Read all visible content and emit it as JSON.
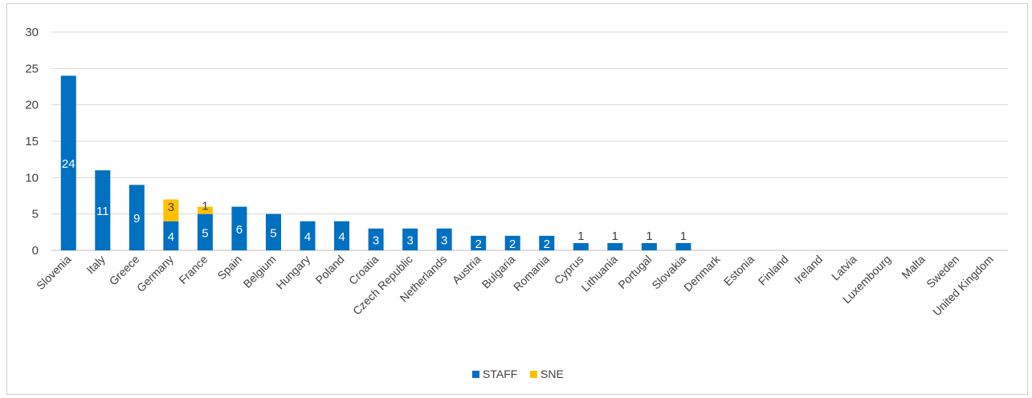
{
  "chart_data": {
    "type": "bar",
    "stacked": true,
    "categories": [
      "Slovenia",
      "Italy",
      "Greece",
      "Germany",
      "France",
      "Spain",
      "Belgium",
      "Hungary",
      "Poland",
      "Croatia",
      "Czech Republic",
      "Netherlands",
      "Austria",
      "Bulgaria",
      "Romania",
      "Cyprus",
      "Lithuania",
      "Portugal",
      "Slovakia",
      "Denmark",
      "Estonia",
      "Finland",
      "Ireland",
      "Latvia",
      "Luxembourg",
      "Malta",
      "Sweden",
      "United Kingdom"
    ],
    "series": [
      {
        "name": "STAFF",
        "color": "#0070c0",
        "values": [
          24,
          11,
          9,
          4,
          5,
          6,
          5,
          4,
          4,
          3,
          3,
          3,
          2,
          2,
          2,
          1,
          1,
          1,
          1,
          0,
          0,
          0,
          0,
          0,
          0,
          0,
          0,
          0
        ]
      },
      {
        "name": "SNE",
        "color": "#ffc000",
        "values": [
          0,
          0,
          0,
          3,
          1,
          0,
          0,
          0,
          0,
          0,
          0,
          0,
          0,
          0,
          0,
          0,
          0,
          0,
          0,
          0,
          0,
          0,
          0,
          0,
          0,
          0,
          0,
          0
        ]
      }
    ],
    "ylim": [
      0,
      30
    ],
    "yticks": [
      0,
      5,
      10,
      15,
      20,
      25,
      30
    ],
    "grid": true,
    "legend_position": "bottom",
    "title": "",
    "xlabel": "",
    "ylabel": ""
  }
}
